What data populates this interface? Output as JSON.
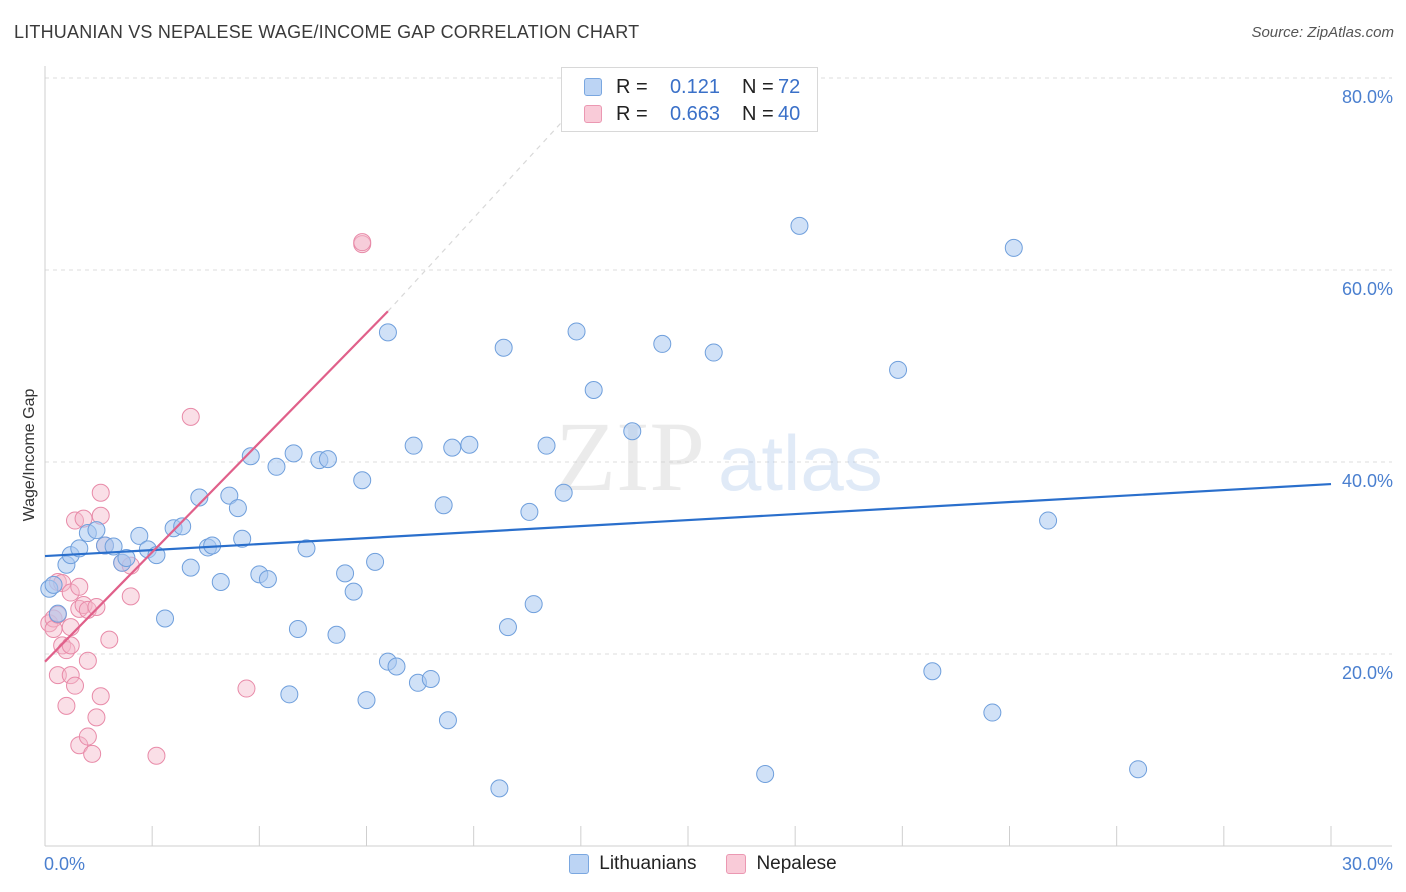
{
  "title": "LITHUANIAN VS NEPALESE WAGE/INCOME GAP CORRELATION CHART",
  "source": "Source: ZipAtlas.com",
  "watermark": {
    "zip": "ZIP",
    "atlas": "atlas"
  },
  "legend": {
    "series1": {
      "r_label": "R =",
      "r_value": "0.121",
      "n_label": "N =",
      "n_value": "72"
    },
    "series2": {
      "r_label": "R =",
      "r_value": "0.663",
      "n_label": "N =",
      "n_value": "40"
    }
  },
  "bottom_legend": {
    "series1": "Lithuanians",
    "series2": "Nepalese"
  },
  "colors": {
    "blue_fill": "#a9c8f0",
    "blue_stroke": "#6f9fdc",
    "blue_line": "#2a6fcc",
    "pink_fill": "#f5b8ca",
    "pink_stroke": "#e88aa8",
    "pink_line": "#e0608a",
    "grid": "#dcdcdc",
    "tick_text": "#4a7fcf"
  },
  "chart_data": {
    "type": "scatter",
    "title": "LITHUANIAN VS NEPALESE WAGE/INCOME GAP CORRELATION CHART",
    "xlabel": "",
    "ylabel": "Wage/Income Gap",
    "xlim": [
      0,
      30
    ],
    "ylim": [
      0,
      80
    ],
    "x_tick_labels": [
      "0.0%",
      "30.0%"
    ],
    "y_tick_labels": [
      "20.0%",
      "40.0%",
      "60.0%",
      "80.0%"
    ],
    "y_tick_values": [
      20,
      40,
      60,
      80
    ],
    "grid": true,
    "series": [
      {
        "name": "Lithuanians",
        "R": 0.121,
        "N": 72,
        "trend": {
          "x": [
            0,
            30
          ],
          "y": [
            30.2,
            37.7
          ]
        },
        "points": [
          [
            0.1,
            26.8
          ],
          [
            0.2,
            27.2
          ],
          [
            0.3,
            24.2
          ],
          [
            0.5,
            29.3
          ],
          [
            0.6,
            30.3
          ],
          [
            0.8,
            31.0
          ],
          [
            1.0,
            32.6
          ],
          [
            1.2,
            32.9
          ],
          [
            1.4,
            31.3
          ],
          [
            1.6,
            31.2
          ],
          [
            1.8,
            29.5
          ],
          [
            2.2,
            32.3
          ],
          [
            2.4,
            30.9
          ],
          [
            2.6,
            30.3
          ],
          [
            2.8,
            23.7
          ],
          [
            3.0,
            33.1
          ],
          [
            3.2,
            33.3
          ],
          [
            3.4,
            29.0
          ],
          [
            3.6,
            36.3
          ],
          [
            3.8,
            31.1
          ],
          [
            3.9,
            31.3
          ],
          [
            4.1,
            27.5
          ],
          [
            4.3,
            36.5
          ],
          [
            4.5,
            35.2
          ],
          [
            4.6,
            32.0
          ],
          [
            4.8,
            40.6
          ],
          [
            5.0,
            28.3
          ],
          [
            5.2,
            27.8
          ],
          [
            5.4,
            39.5
          ],
          [
            5.7,
            15.8
          ],
          [
            5.8,
            40.9
          ],
          [
            5.9,
            22.6
          ],
          [
            6.1,
            31.0
          ],
          [
            6.4,
            40.2
          ],
          [
            6.6,
            40.3
          ],
          [
            6.8,
            22.0
          ],
          [
            7.0,
            28.4
          ],
          [
            7.2,
            26.5
          ],
          [
            7.4,
            38.1
          ],
          [
            7.5,
            15.2
          ],
          [
            7.7,
            29.6
          ],
          [
            8.0,
            53.5
          ],
          [
            8.0,
            19.2
          ],
          [
            8.2,
            18.7
          ],
          [
            8.6,
            41.7
          ],
          [
            8.7,
            17.0
          ],
          [
            9.0,
            17.4
          ],
          [
            9.3,
            35.5
          ],
          [
            9.4,
            13.1
          ],
          [
            9.5,
            41.5
          ],
          [
            9.9,
            41.8
          ],
          [
            10.6,
            6.0
          ],
          [
            10.7,
            51.9
          ],
          [
            10.8,
            22.8
          ],
          [
            11.3,
            34.8
          ],
          [
            11.4,
            25.2
          ],
          [
            11.7,
            41.7
          ],
          [
            12.1,
            36.8
          ],
          [
            12.4,
            53.6
          ],
          [
            12.8,
            47.5
          ],
          [
            13.7,
            43.2
          ],
          [
            14.4,
            52.3
          ],
          [
            15.6,
            51.4
          ],
          [
            16.8,
            7.5
          ],
          [
            17.6,
            64.6
          ],
          [
            19.9,
            49.6
          ],
          [
            20.7,
            18.2
          ],
          [
            22.1,
            13.9
          ],
          [
            22.6,
            62.3
          ],
          [
            23.4,
            33.9
          ],
          [
            25.5,
            8.0
          ],
          [
            1.9,
            30.0
          ]
        ]
      },
      {
        "name": "Nepalese",
        "R": 0.663,
        "N": 40,
        "trend": {
          "x": [
            0,
            8.0
          ],
          "y": [
            19.2,
            55.7
          ]
        },
        "trend_extension": {
          "x": [
            8.0,
            13.0
          ],
          "y": [
            55.7,
            80.0
          ]
        },
        "points": [
          [
            0.1,
            23.2
          ],
          [
            0.2,
            23.7
          ],
          [
            0.2,
            22.6
          ],
          [
            0.3,
            27.5
          ],
          [
            0.3,
            24.1
          ],
          [
            0.3,
            17.8
          ],
          [
            0.4,
            27.4
          ],
          [
            0.4,
            20.9
          ],
          [
            0.5,
            20.4
          ],
          [
            0.5,
            14.6
          ],
          [
            0.6,
            17.8
          ],
          [
            0.6,
            26.4
          ],
          [
            0.6,
            22.8
          ],
          [
            0.7,
            33.9
          ],
          [
            0.7,
            16.7
          ],
          [
            0.8,
            27.0
          ],
          [
            0.8,
            24.7
          ],
          [
            0.8,
            10.5
          ],
          [
            0.9,
            34.1
          ],
          [
            0.9,
            25.1
          ],
          [
            1.0,
            11.4
          ],
          [
            1.0,
            19.3
          ],
          [
            1.0,
            24.6
          ],
          [
            1.1,
            9.6
          ],
          [
            1.2,
            24.9
          ],
          [
            1.2,
            13.4
          ],
          [
            1.3,
            34.4
          ],
          [
            1.3,
            36.8
          ],
          [
            1.3,
            15.6
          ],
          [
            1.4,
            31.3
          ],
          [
            1.5,
            21.5
          ],
          [
            1.8,
            29.5
          ],
          [
            2.0,
            26.0
          ],
          [
            2.6,
            9.4
          ],
          [
            3.4,
            44.7
          ],
          [
            4.7,
            16.4
          ],
          [
            7.4,
            62.7
          ],
          [
            7.4,
            62.9
          ],
          [
            0.6,
            20.9
          ],
          [
            2.0,
            29.2
          ]
        ]
      }
    ]
  }
}
